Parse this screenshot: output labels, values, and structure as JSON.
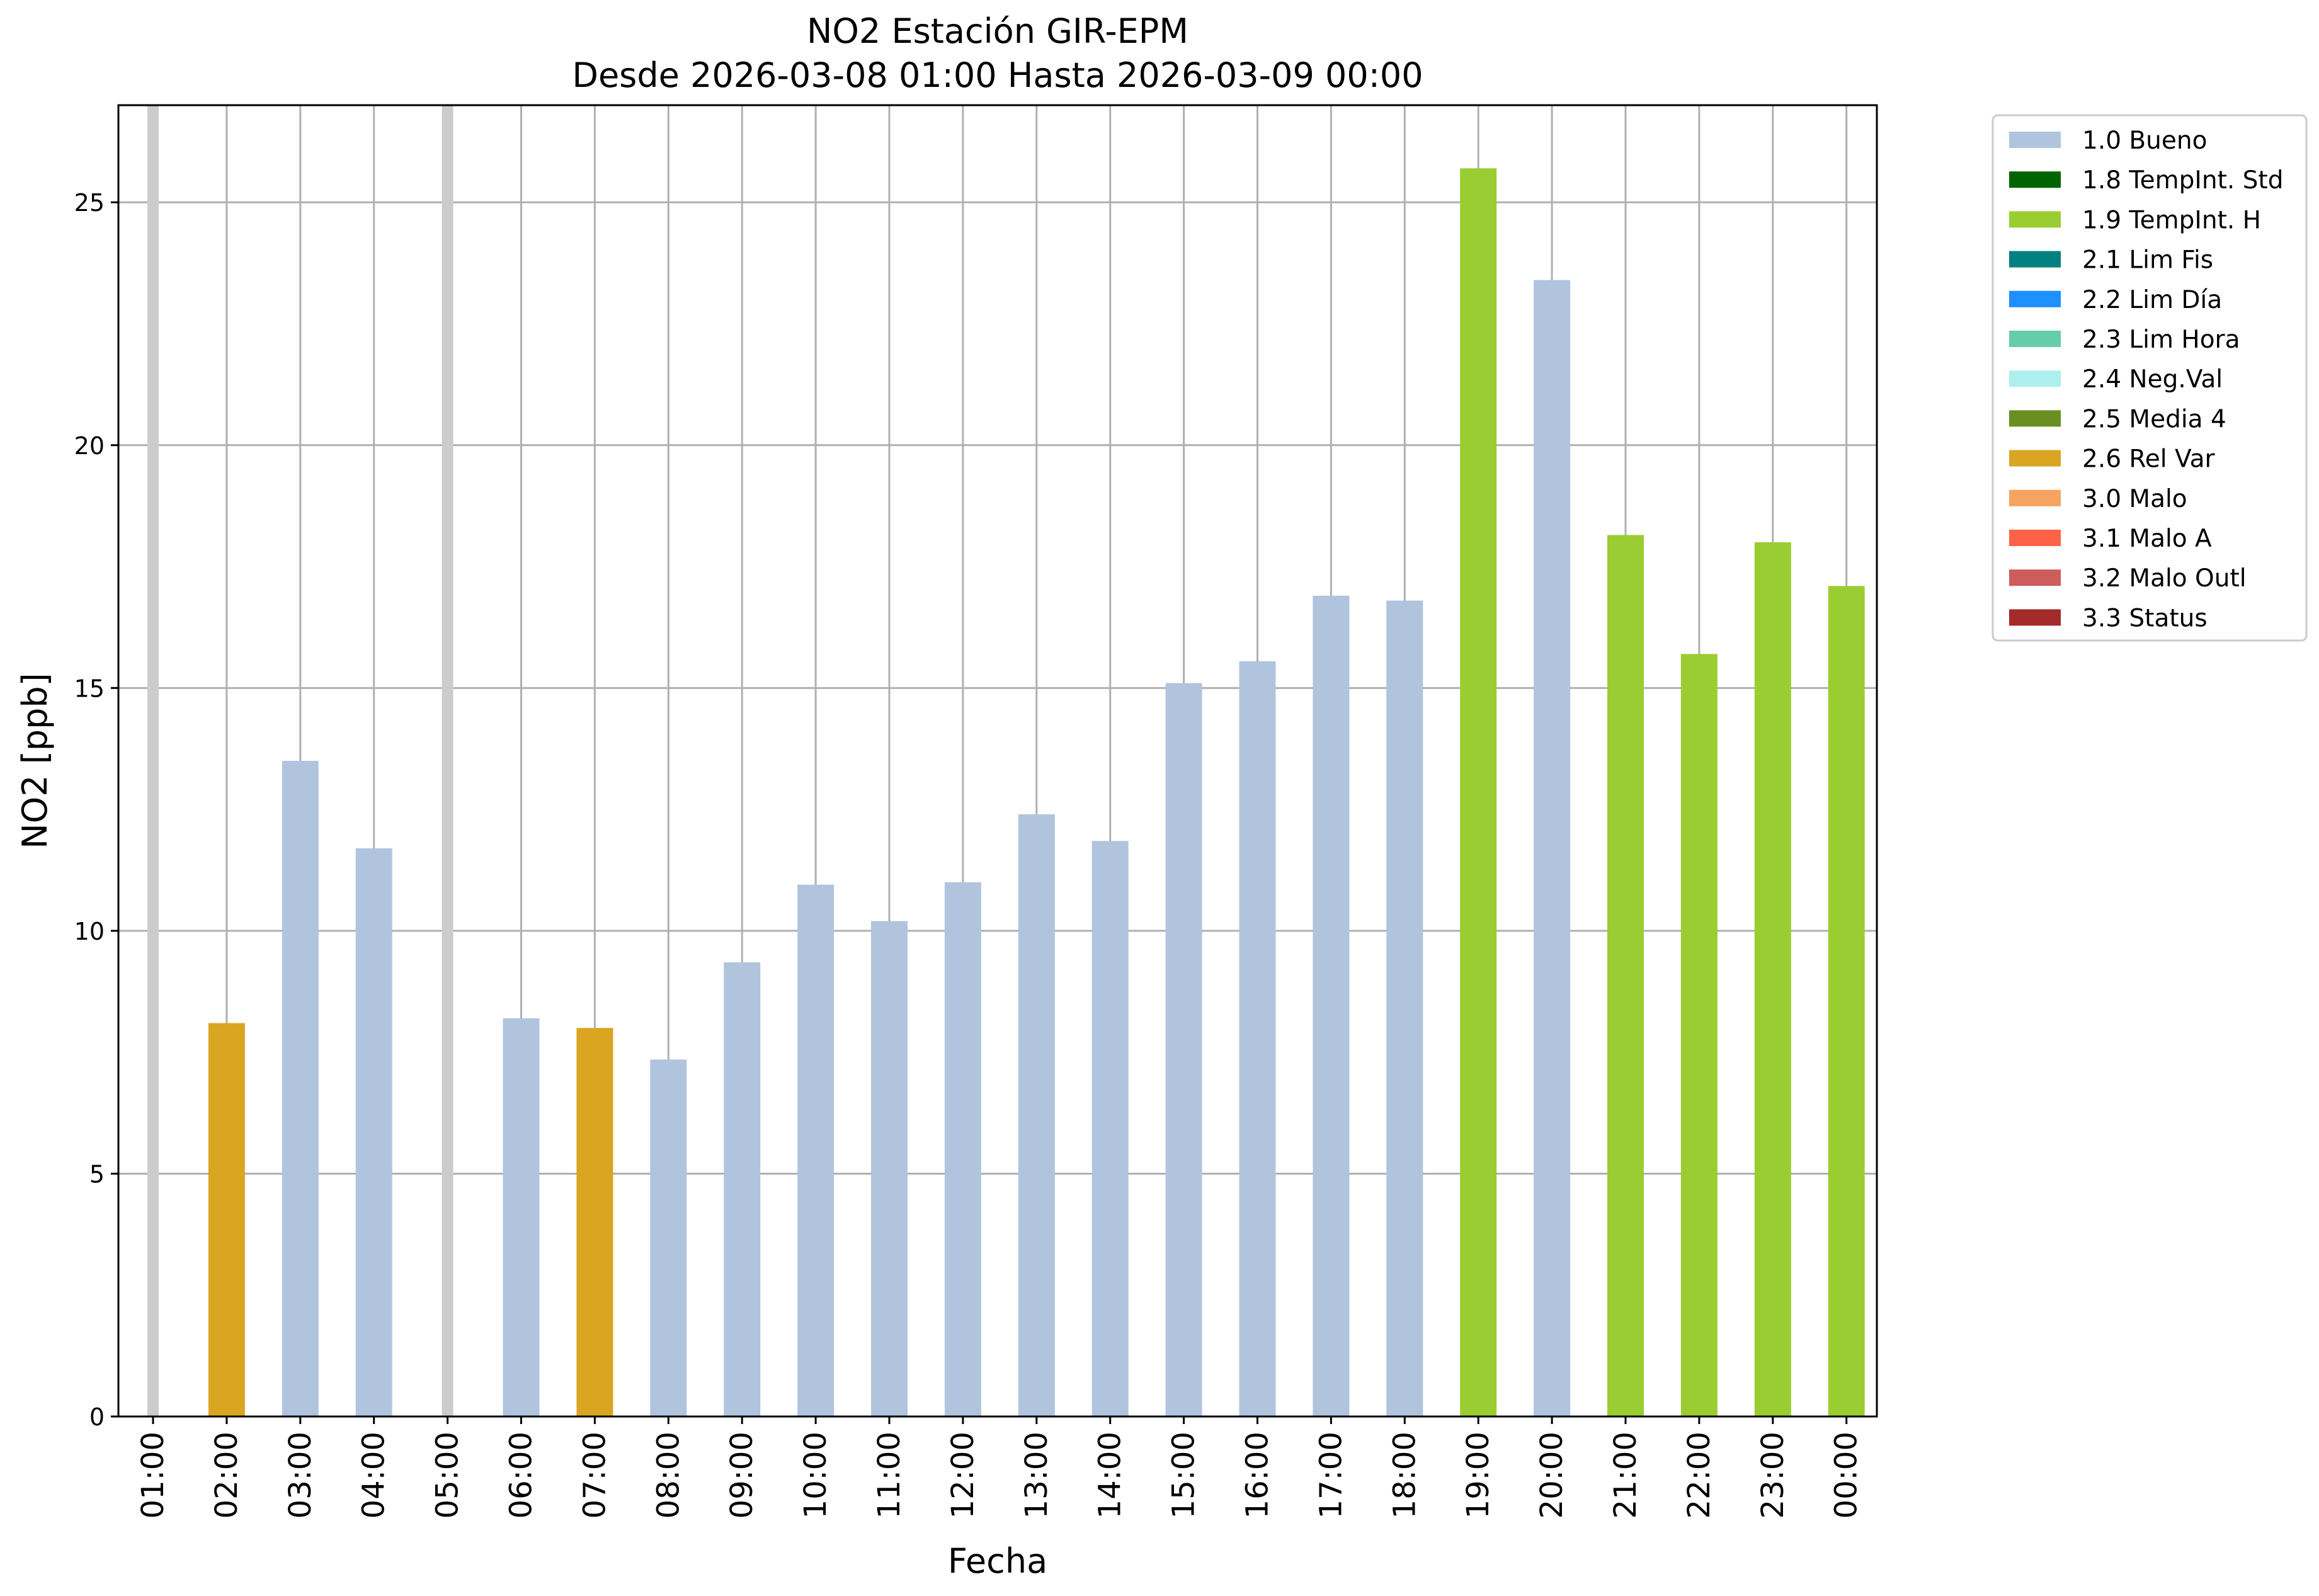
{
  "chart_data": {
    "type": "bar",
    "title": "NO2 Estación GIR-EPM",
    "subtitle": "Desde 2026-03-08 01:00 Hasta 2026-03-09 00:00",
    "xlabel": "Fecha",
    "ylabel": "NO2 [ppb]",
    "ylim": [
      0,
      27
    ],
    "yticks": [
      0,
      5,
      10,
      15,
      20,
      25
    ],
    "grid": true,
    "legend_position": "outside-top-right",
    "categories": [
      "01:00",
      "02:00",
      "03:00",
      "04:00",
      "05:00",
      "06:00",
      "07:00",
      "08:00",
      "09:00",
      "10:00",
      "11:00",
      "12:00",
      "13:00",
      "14:00",
      "15:00",
      "16:00",
      "17:00",
      "18:00",
      "19:00",
      "20:00",
      "21:00",
      "22:00",
      "23:00",
      "00:00"
    ],
    "values": [
      null,
      8.1,
      13.5,
      11.7,
      null,
      8.2,
      8.0,
      7.35,
      9.35,
      10.95,
      10.2,
      11.0,
      12.4,
      11.85,
      15.1,
      15.55,
      16.9,
      16.8,
      25.7,
      23.4,
      18.15,
      15.7,
      18.0,
      17.1
    ],
    "flags": [
      "none",
      "2.6",
      "1.0",
      "1.0",
      "none",
      "1.0",
      "2.6",
      "1.0",
      "1.0",
      "1.0",
      "1.0",
      "1.0",
      "1.0",
      "1.0",
      "1.0",
      "1.0",
      "1.0",
      "1.0",
      "1.9",
      "1.0",
      "1.9",
      "1.9",
      "1.9",
      "1.9"
    ],
    "missing_marker_color": "#cccccc",
    "legend": [
      {
        "code": "1.0",
        "label": "1.0 Bueno",
        "color": "#b0c4de"
      },
      {
        "code": "1.8",
        "label": "1.8 TempInt. Std",
        "color": "#006400"
      },
      {
        "code": "1.9",
        "label": "1.9 TempInt. H",
        "color": "#9acd32"
      },
      {
        "code": "2.1",
        "label": "2.1 Lim Fis",
        "color": "#008080"
      },
      {
        "code": "2.2",
        "label": "2.2 Lim Día",
        "color": "#1e90ff"
      },
      {
        "code": "2.3",
        "label": "2.3 Lim Hora",
        "color": "#66cdaa"
      },
      {
        "code": "2.4",
        "label": "2.4 Neg.Val",
        "color": "#afeeee"
      },
      {
        "code": "2.5",
        "label": "2.5 Media 4",
        "color": "#6b8e23"
      },
      {
        "code": "2.6",
        "label": "2.6 Rel Var",
        "color": "#daa520"
      },
      {
        "code": "3.0",
        "label": "3.0 Malo",
        "color": "#f4a460"
      },
      {
        "code": "3.1",
        "label": "3.1 Malo A",
        "color": "#ff6347"
      },
      {
        "code": "3.2",
        "label": "3.2 Malo Outl",
        "color": "#cd5c5c"
      },
      {
        "code": "3.3",
        "label": "3.3 Status",
        "color": "#a52a2a"
      }
    ]
  }
}
